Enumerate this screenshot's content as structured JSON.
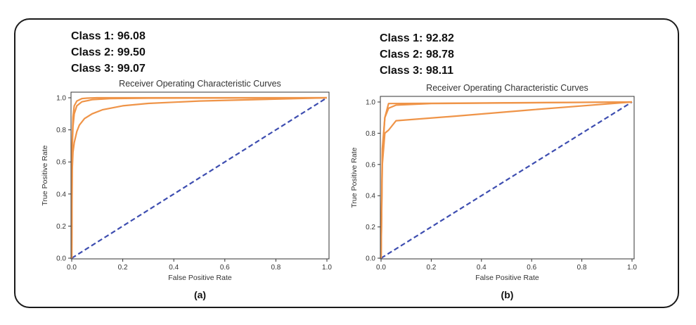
{
  "chart_data": [
    {
      "type": "line",
      "panel_label": "(a)",
      "title": "Receiver Operating Characteristic Curves",
      "xlabel": "False Positive Rate",
      "ylabel": "True Positive Rate",
      "xlim": [
        0,
        1.0
      ],
      "ylim": [
        0,
        1.0
      ],
      "xticks": [
        "0.0",
        "0.2",
        "0.4",
        "0.6",
        "0.8",
        "1.0"
      ],
      "yticks": [
        "0.0",
        "0.2",
        "0.4",
        "0.6",
        "0.8",
        "1.0"
      ],
      "auc_labels": [
        "Class 1: 96.08",
        "Class 2: 99.50",
        "Class 3: 99.07"
      ],
      "series": [
        {
          "name": "Class 1",
          "x": [
            0,
            0.002,
            0.005,
            0.01,
            0.02,
            0.03,
            0.05,
            0.08,
            0.12,
            0.2,
            0.3,
            0.5,
            1.0
          ],
          "y": [
            0,
            0.55,
            0.66,
            0.72,
            0.79,
            0.83,
            0.87,
            0.9,
            0.925,
            0.95,
            0.965,
            0.98,
            1.0
          ]
        },
        {
          "name": "Class 2",
          "x": [
            0,
            0.002,
            0.005,
            0.01,
            0.02,
            0.04,
            0.06,
            0.1,
            1.0
          ],
          "y": [
            0,
            0.72,
            0.88,
            0.95,
            0.98,
            0.995,
            0.998,
            1.0,
            1.0
          ]
        },
        {
          "name": "Class 3",
          "x": [
            0,
            0.002,
            0.005,
            0.01,
            0.02,
            0.04,
            0.08,
            0.15,
            0.3,
            1.0
          ],
          "y": [
            0,
            0.68,
            0.82,
            0.9,
            0.95,
            0.975,
            0.988,
            0.995,
            0.998,
            1.0
          ]
        }
      ],
      "reference": {
        "name": "chance",
        "x": [
          0,
          1
        ],
        "y": [
          0,
          1
        ]
      }
    },
    {
      "type": "line",
      "panel_label": "(b)",
      "title": "Receiver Operating Characteristic Curves",
      "xlabel": "False Positive Rate",
      "ylabel": "True Positive Rate",
      "xlim": [
        0,
        1.0
      ],
      "ylim": [
        0,
        1.0
      ],
      "xticks": [
        "0.0",
        "0.2",
        "0.4",
        "0.6",
        "0.8",
        "1.0"
      ],
      "yticks": [
        "0.0",
        "0.2",
        "0.4",
        "0.6",
        "0.8",
        "1.0"
      ],
      "auc_labels": [
        "Class 1: 92.82",
        "Class 2: 98.78",
        "Class 3: 98.11"
      ],
      "series": [
        {
          "name": "Class 1",
          "x": [
            0,
            0.005,
            0.015,
            0.03,
            0.06,
            0.3,
            0.6,
            1.0
          ],
          "y": [
            0,
            0.6,
            0.8,
            0.82,
            0.88,
            0.91,
            0.95,
            1.0
          ]
        },
        {
          "name": "Class 2",
          "x": [
            0,
            0.005,
            0.015,
            0.03,
            1.0
          ],
          "y": [
            0,
            0.7,
            0.9,
            0.99,
            1.0
          ]
        },
        {
          "name": "Class 3",
          "x": [
            0,
            0.005,
            0.015,
            0.03,
            0.06,
            0.2,
            1.0
          ],
          "y": [
            0,
            0.65,
            0.9,
            0.96,
            0.98,
            0.99,
            1.0
          ]
        }
      ],
      "reference": {
        "name": "chance",
        "x": [
          0,
          1
        ],
        "y": [
          0,
          1
        ]
      }
    }
  ],
  "colors": {
    "roc": "#ef9448",
    "reference": "#3d4db0",
    "axis": "#333333"
  }
}
